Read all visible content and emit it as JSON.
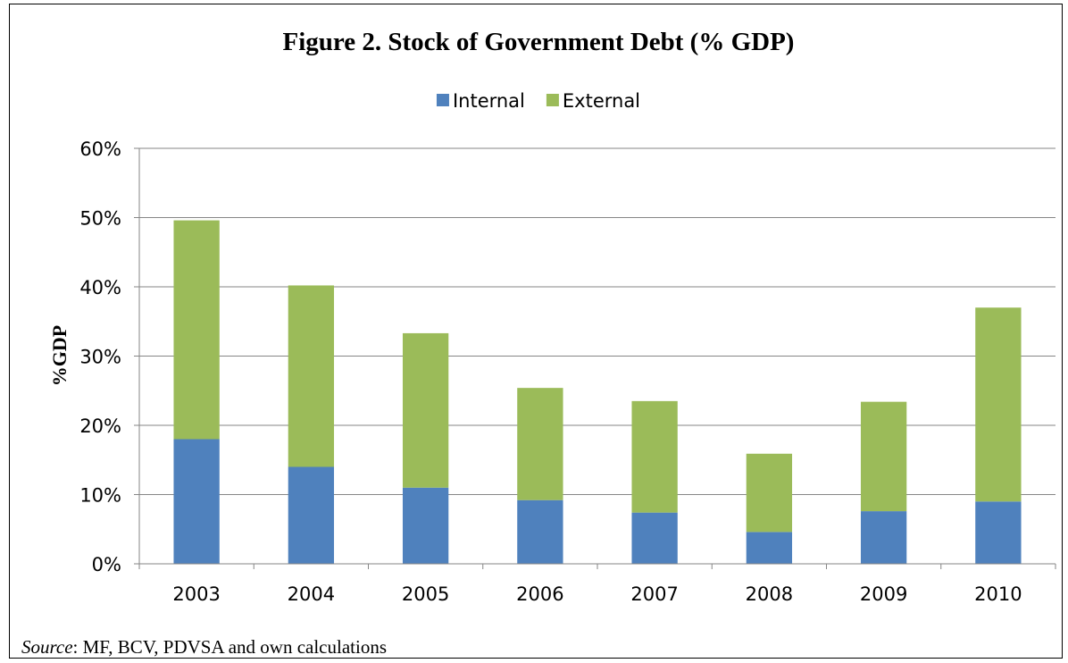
{
  "chart_data": {
    "type": "bar",
    "stacked": true,
    "title": "Figure 2. Stock of Government Debt (% GDP)",
    "ylabel": "%GDP",
    "xlabel": "",
    "categories": [
      "2003",
      "2004",
      "2005",
      "2006",
      "2007",
      "2008",
      "2009",
      "2010"
    ],
    "series": [
      {
        "name": "Internal",
        "color": "#4f81bd",
        "values": [
          18.0,
          14.0,
          11.0,
          9.2,
          7.4,
          4.6,
          7.6,
          9.0
        ]
      },
      {
        "name": "External",
        "color": "#9bbb59",
        "values": [
          31.6,
          26.2,
          22.3,
          16.2,
          16.1,
          11.3,
          15.8,
          28.0
        ]
      }
    ],
    "ylim": [
      0,
      60
    ],
    "yticks": [
      0,
      10,
      20,
      30,
      40,
      50,
      60
    ],
    "ytick_labels": [
      "0%",
      "10%",
      "20%",
      "30%",
      "40%",
      "50%",
      "60%"
    ],
    "grid": true,
    "legend_position": "top"
  },
  "source": {
    "prefix": "Source",
    "text": ": MF, BCV, PDVSA and own calculations"
  }
}
